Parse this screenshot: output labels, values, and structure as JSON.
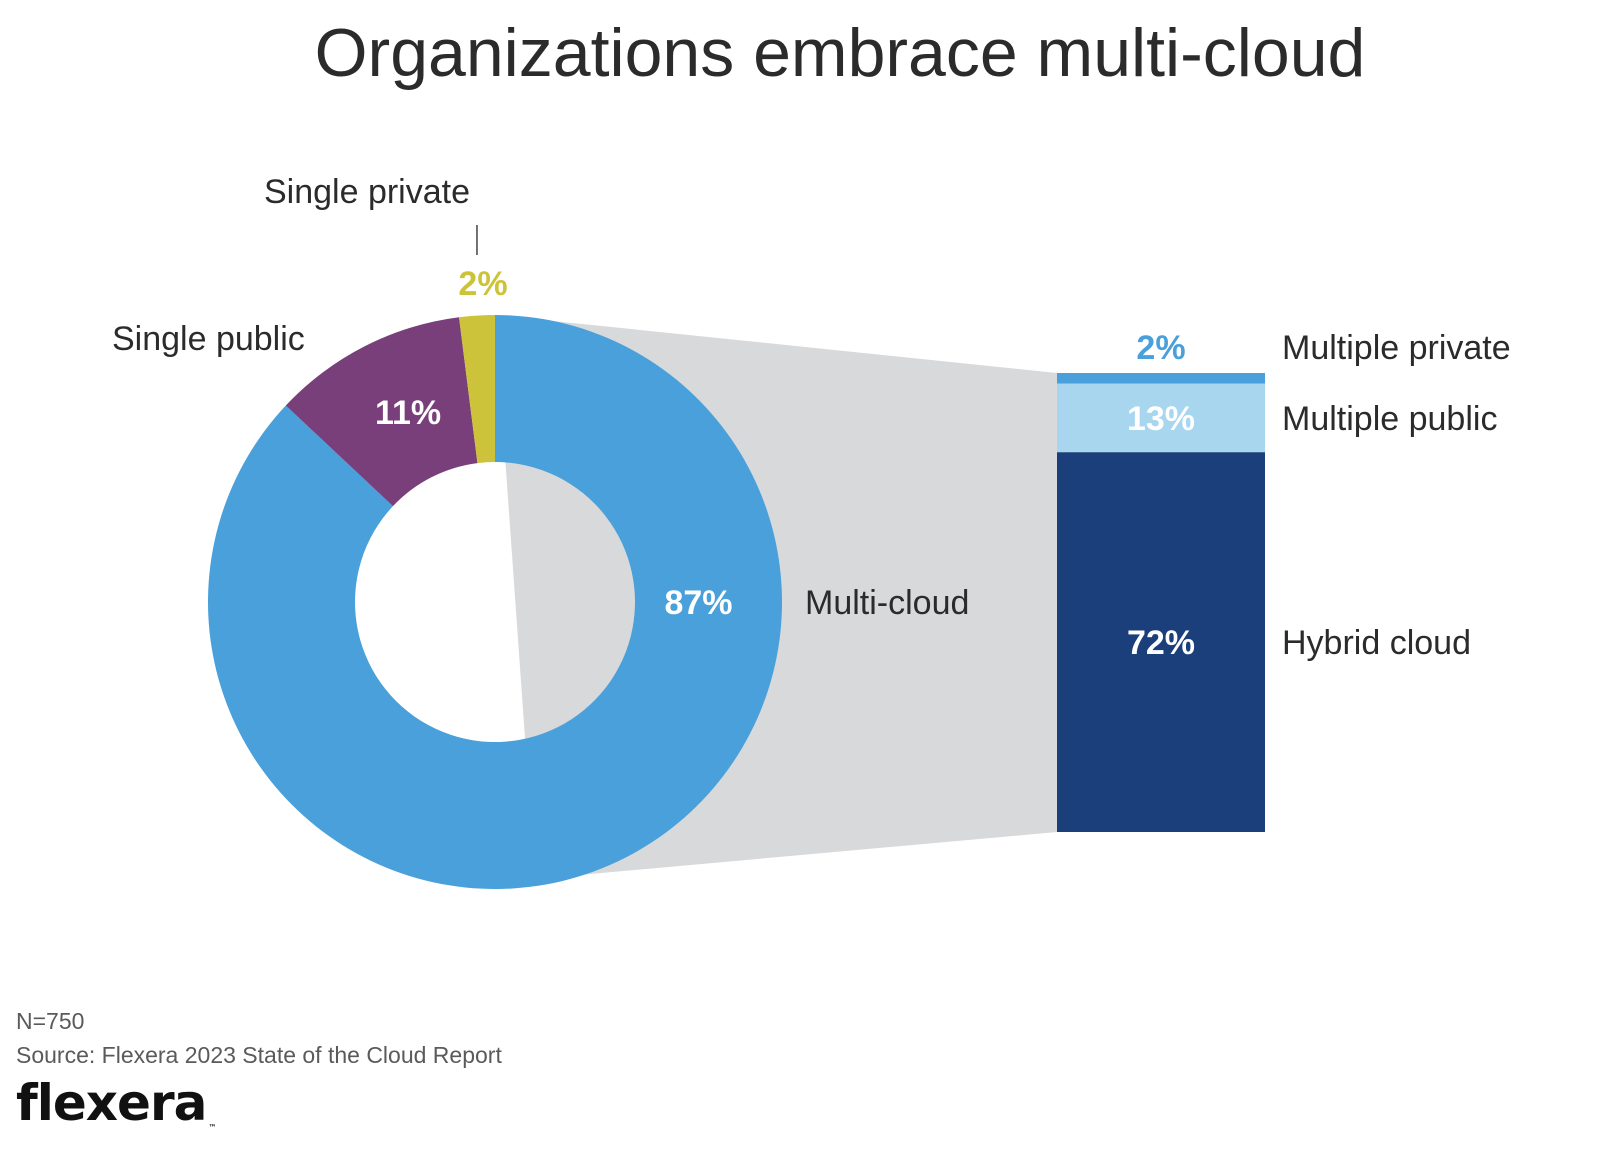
{
  "title": "Organizations embrace multi-cloud",
  "footer": {
    "n": "N=750",
    "source": "Source: Flexera 2023 State of the Cloud Report",
    "logo": "flexera",
    "logo_tm": "™"
  },
  "colors": {
    "multi_cloud": "#4aa0da",
    "single_public": "#793f7a",
    "single_private": "#cdc33a",
    "connector": "#d8d9db",
    "multiple_private": "#4aa0da",
    "multiple_public": "#a8d6ef",
    "hybrid_cloud": "#1b3f7a"
  },
  "chart_data": [
    {
      "type": "pie",
      "donut": true,
      "slices": [
        {
          "label": "Multi-cloud",
          "value": 87,
          "value_label": "87%",
          "color": "#4aa0da"
        },
        {
          "label": "Single public",
          "value": 11,
          "value_label": "11%",
          "color": "#793f7a"
        },
        {
          "label": "Single private",
          "value": 2,
          "value_label": "2%",
          "color": "#cdc33a"
        }
      ]
    },
    {
      "type": "bar",
      "stacked": true,
      "breakdown_of": "Multi-cloud",
      "segments": [
        {
          "label": "Hybrid cloud",
          "value": 72,
          "value_label": "72%",
          "color": "#1b3f7a"
        },
        {
          "label": "Multiple public",
          "value": 13,
          "value_label": "13%",
          "color": "#a8d6ef"
        },
        {
          "label": "Multiple private",
          "value": 2,
          "value_label": "2%",
          "color": "#4aa0da"
        }
      ]
    }
  ]
}
